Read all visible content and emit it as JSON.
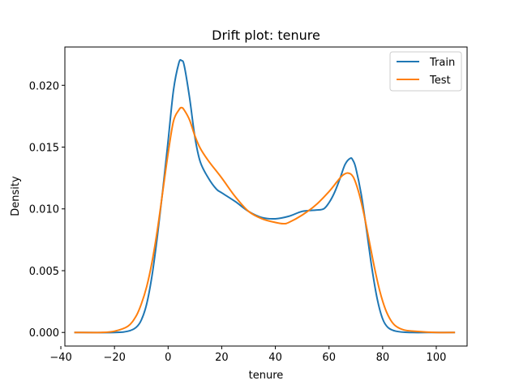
{
  "chart_data": {
    "type": "line",
    "title": "Drift plot: tenure",
    "xlabel": "tenure",
    "ylabel": "Density",
    "xlim": [
      -38.5,
      111.5
    ],
    "ylim": [
      -0.0011,
      0.0231
    ],
    "xticks": [
      -40,
      -20,
      0,
      20,
      40,
      60,
      80,
      100
    ],
    "yticks": [
      0.0,
      0.005,
      0.01,
      0.015,
      0.02
    ],
    "ytick_labels": [
      "0.000",
      "0.005",
      "0.010",
      "0.015",
      "0.020"
    ],
    "grid": false,
    "legend": "top-right",
    "series": [
      {
        "name": "Train",
        "color": "#1f77b4",
        "x": [
          -35,
          -20,
          -15,
          -12,
          -10,
          -8,
          -6,
          -4,
          -2,
          0,
          2,
          4,
          5,
          6,
          8,
          10,
          12,
          15,
          18,
          20,
          25,
          30,
          35,
          40,
          45,
          50,
          55,
          58,
          60,
          62,
          64,
          66,
          68,
          69,
          70,
          72,
          74,
          76,
          78,
          80,
          82,
          85,
          90,
          100,
          107
        ],
        "y": [
          0.0,
          0.0,
          0.0001,
          0.0004,
          0.001,
          0.0023,
          0.0046,
          0.0078,
          0.0115,
          0.0155,
          0.0196,
          0.0218,
          0.022,
          0.0216,
          0.019,
          0.0158,
          0.0138,
          0.0125,
          0.0116,
          0.0113,
          0.0106,
          0.0098,
          0.0093,
          0.0092,
          0.0094,
          0.0098,
          0.0099,
          0.01,
          0.0105,
          0.0113,
          0.0124,
          0.0136,
          0.0141,
          0.0139,
          0.0133,
          0.0112,
          0.0083,
          0.0052,
          0.0027,
          0.0011,
          0.0004,
          0.0001,
          0.0,
          0.0,
          0.0
        ]
      },
      {
        "name": "Test",
        "color": "#ff7f0e",
        "x": [
          -35,
          -25,
          -20,
          -15,
          -12,
          -10,
          -8,
          -6,
          -4,
          -2,
          0,
          2,
          4,
          5,
          6,
          8,
          10,
          12,
          15,
          20,
          25,
          30,
          35,
          40,
          43,
          45,
          50,
          55,
          60,
          63,
          65,
          67,
          69,
          71,
          73,
          75,
          77,
          79,
          81,
          83,
          85,
          88,
          92,
          100,
          107
        ],
        "y": [
          0.0,
          0.0,
          0.0001,
          0.0005,
          0.0013,
          0.0023,
          0.0037,
          0.0057,
          0.0083,
          0.0114,
          0.0145,
          0.0171,
          0.018,
          0.0182,
          0.018,
          0.0172,
          0.0159,
          0.0149,
          0.0139,
          0.0125,
          0.011,
          0.0098,
          0.0092,
          0.0089,
          0.0088,
          0.0089,
          0.0095,
          0.0103,
          0.0114,
          0.0122,
          0.0127,
          0.0129,
          0.0126,
          0.0114,
          0.0096,
          0.0074,
          0.0052,
          0.0033,
          0.0019,
          0.001,
          0.0005,
          0.0002,
          0.0001,
          0.0,
          0.0
        ]
      }
    ]
  }
}
